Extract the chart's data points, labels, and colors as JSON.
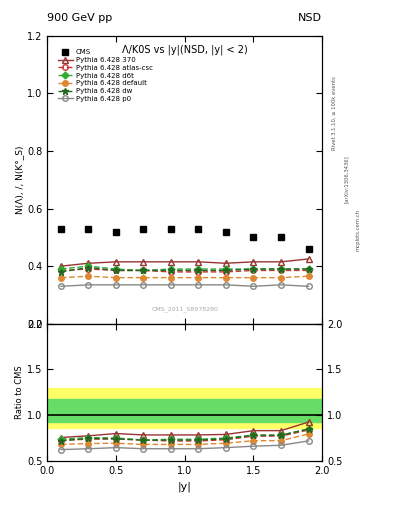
{
  "title_top": "900 GeV pp",
  "title_top_right": "NSD",
  "plot_title": "Λ/K0S vs |y|(NSD, |y| < 2)",
  "ylabel_main": "N(Λ), /, N(K°_S)",
  "ylabel_ratio": "Ratio to CMS",
  "xlabel": "|y|",
  "watermark": "CMS_2011_S8978280",
  "rivet_label": "Rivet 3.1.10, ≥ 100k events",
  "arxiv_label": "[arXiv:1306.3436]",
  "mcplots_label": "mcplots.cern.ch",
  "x_data": [
    0.1,
    0.3,
    0.5,
    0.7,
    0.9,
    1.1,
    1.3,
    1.5,
    1.7,
    1.9
  ],
  "cms_y": [
    0.53,
    0.53,
    0.52,
    0.53,
    0.53,
    0.53,
    0.52,
    0.5,
    0.5,
    0.46
  ],
  "p370_y": [
    0.4,
    0.41,
    0.415,
    0.415,
    0.415,
    0.415,
    0.41,
    0.415,
    0.415,
    0.425
  ],
  "atlas_y": [
    0.385,
    0.39,
    0.385,
    0.385,
    0.38,
    0.38,
    0.38,
    0.385,
    0.385,
    0.385
  ],
  "d6t_y": [
    0.39,
    0.4,
    0.39,
    0.385,
    0.39,
    0.39,
    0.39,
    0.39,
    0.39,
    0.39
  ],
  "default_y": [
    0.36,
    0.365,
    0.36,
    0.36,
    0.36,
    0.36,
    0.36,
    0.36,
    0.36,
    0.365
  ],
  "dw_y": [
    0.38,
    0.395,
    0.385,
    0.385,
    0.385,
    0.385,
    0.385,
    0.39,
    0.39,
    0.39
  ],
  "p0_y": [
    0.33,
    0.335,
    0.335,
    0.335,
    0.335,
    0.335,
    0.335,
    0.33,
    0.335,
    0.33
  ],
  "ylim_main": [
    0.2,
    1.2
  ],
  "ylim_ratio": [
    0.5,
    2.0
  ],
  "ratio_band_yellow": [
    0.86,
    1.3
  ],
  "ratio_band_green": [
    0.92,
    1.18
  ],
  "colors": {
    "cms": "#000000",
    "p370": "#993333",
    "atlas": "#cc3333",
    "d6t": "#33aa33",
    "default": "#dd8833",
    "dw": "#226622",
    "p0": "#888888"
  },
  "bg_color": "#ffffff"
}
